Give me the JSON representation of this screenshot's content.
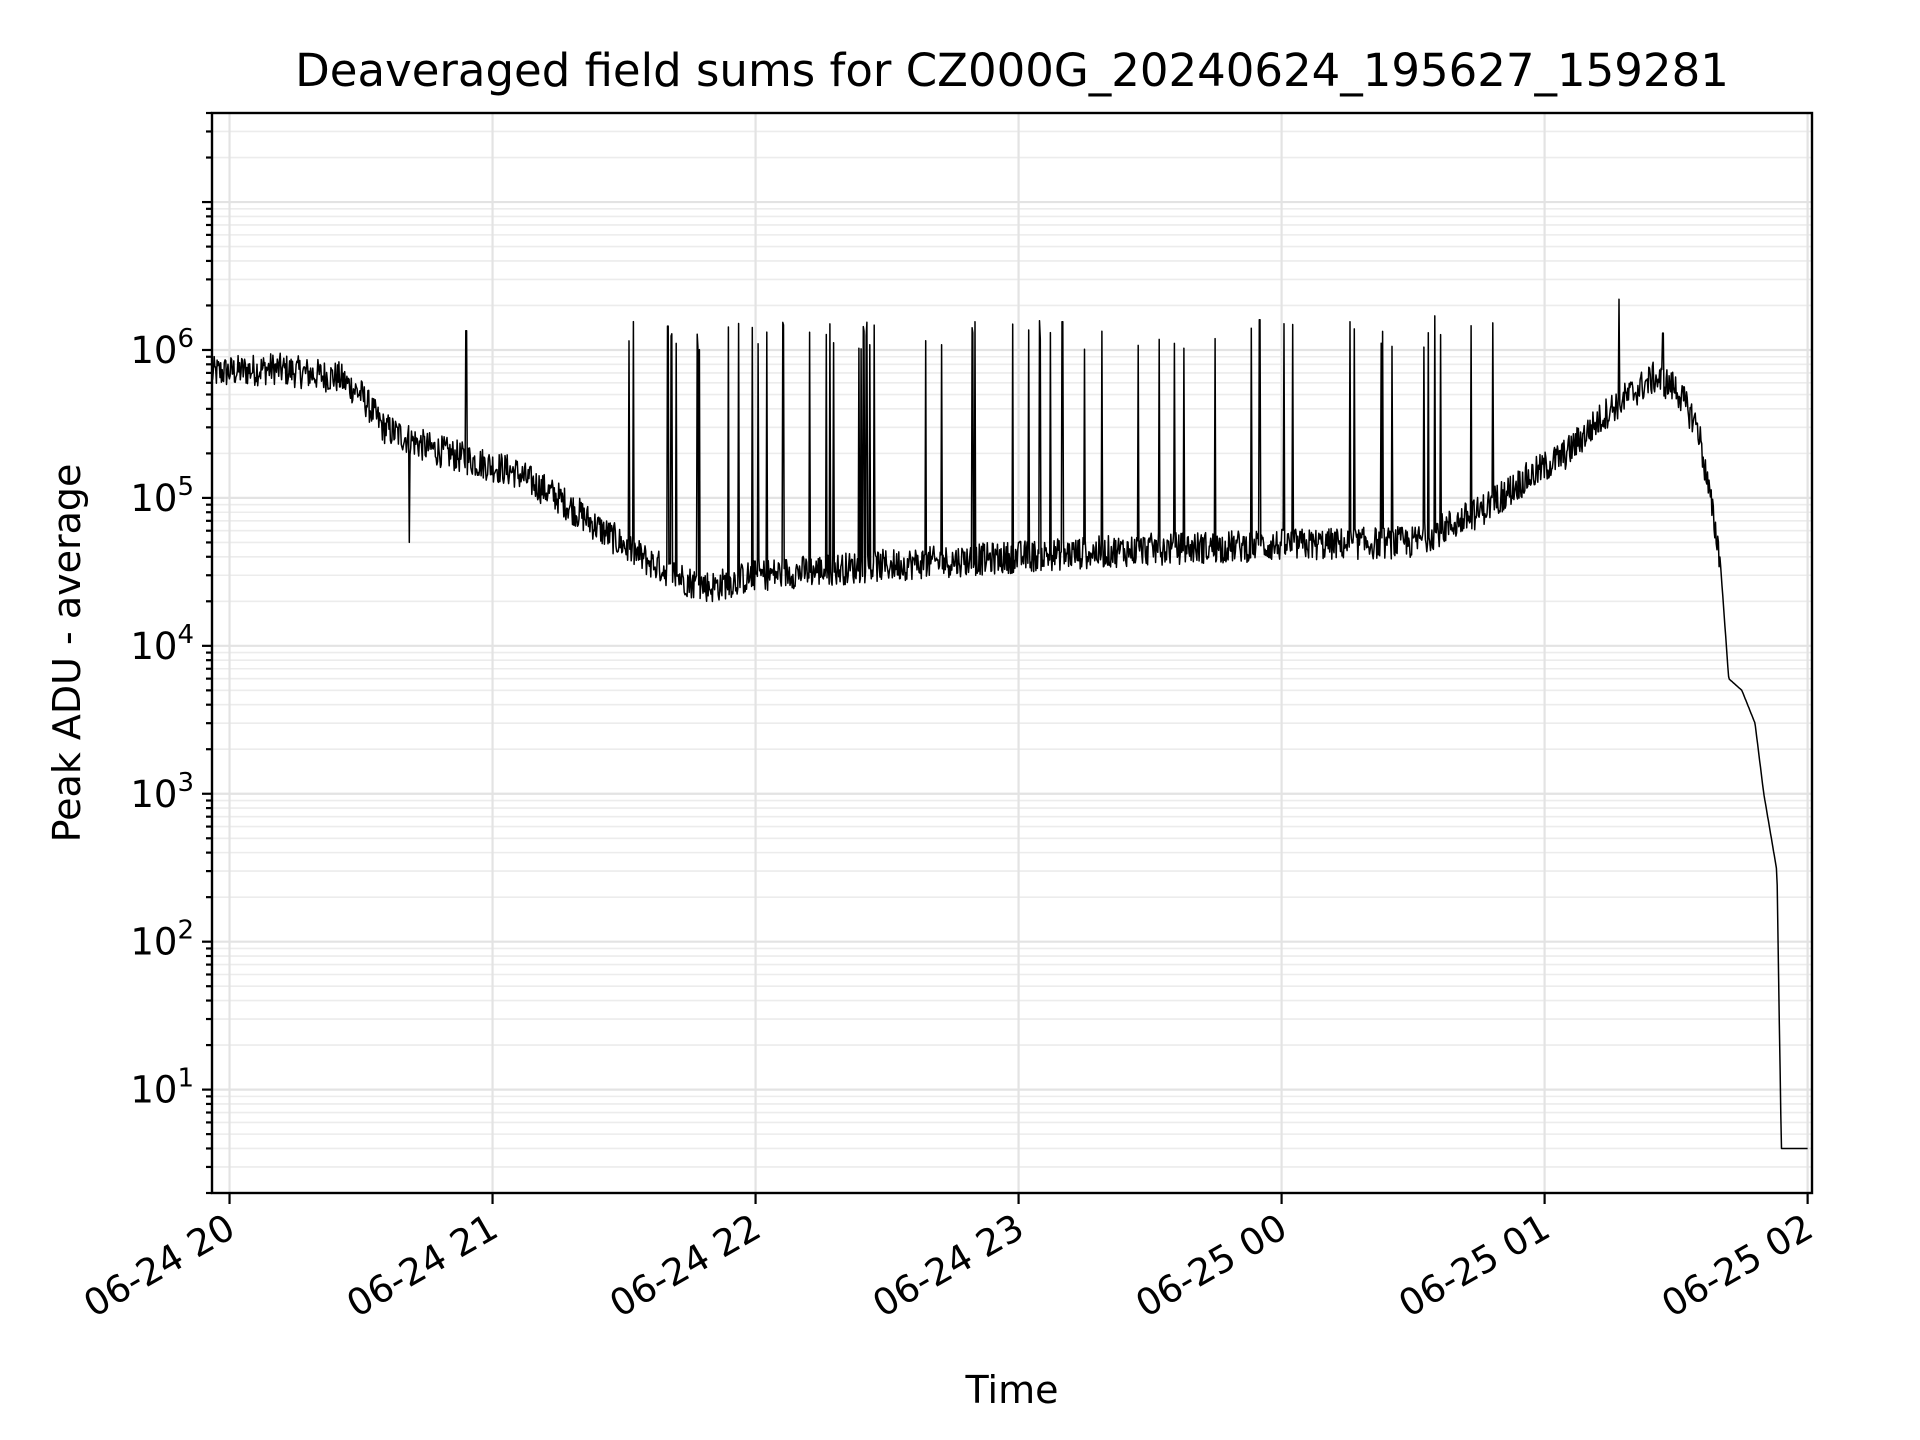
{
  "chart_data": {
    "type": "line",
    "title": "Deaveraged field sums for CZ000G_20240624_195627_159281",
    "xlabel": "Time",
    "ylabel": "Peak ADU - average",
    "yscale": "log",
    "ylim": [
      2,
      40000000
    ],
    "xlim": [
      "06-24 19:56",
      "06-25 02:01"
    ],
    "grid": true,
    "legend": "none",
    "line_color": "#000000",
    "xticks": [
      "06-24 20",
      "06-24 21",
      "06-24 22",
      "06-24 23",
      "06-25 00",
      "06-25 01",
      "06-25 02"
    ],
    "yticks": [
      {
        "base": "10",
        "exp": "1",
        "value": 10
      },
      {
        "base": "10",
        "exp": "2",
        "value": 100
      },
      {
        "base": "10",
        "exp": "3",
        "value": 1000
      },
      {
        "base": "10",
        "exp": "4",
        "value": 10000
      },
      {
        "base": "10",
        "exp": "5",
        "value": 100000
      },
      {
        "base": "10",
        "exp": "6",
        "value": 1000000
      }
    ],
    "series": [
      {
        "baseline": [
          [
            "06-24 19:56",
            700000
          ],
          [
            "06-24 20:10",
            750000
          ],
          [
            "06-24 20:20",
            680000
          ],
          [
            "06-24 20:25",
            650000
          ],
          [
            "06-24 20:30",
            500000
          ],
          [
            "06-24 20:35",
            300000
          ],
          [
            "06-24 20:45",
            220000
          ],
          [
            "06-24 20:55",
            180000
          ],
          [
            "06-24 21:05",
            150000
          ],
          [
            "06-24 21:15",
            100000
          ],
          [
            "06-24 21:25",
            60000
          ],
          [
            "06-24 21:35",
            38000
          ],
          [
            "06-24 21:45",
            27000
          ],
          [
            "06-24 21:50",
            25000
          ],
          [
            "06-24 22:00",
            30000
          ],
          [
            "06-24 22:30",
            35000
          ],
          [
            "06-24 23:00",
            40000
          ],
          [
            "06-24 23:30",
            45000
          ],
          [
            "06-25 00:00",
            48000
          ],
          [
            "06-25 00:30",
            50000
          ],
          [
            "06-25 00:45",
            80000
          ],
          [
            "06-25 00:55",
            130000
          ],
          [
            "06-25 01:05",
            200000
          ],
          [
            "06-25 01:15",
            400000
          ],
          [
            "06-25 01:25",
            650000
          ],
          [
            "06-25 01:30",
            550000
          ],
          [
            "06-25 01:35",
            300000
          ],
          [
            "06-25 01:40",
            40000
          ],
          [
            "06-25 01:42",
            6000
          ],
          [
            "06-25 01:45",
            5000
          ],
          [
            "06-25 01:48",
            3000
          ],
          [
            "06-25 01:50",
            1000
          ],
          [
            "06-25 01:53",
            300
          ],
          [
            "06-25 01:54",
            4
          ],
          [
            "06-25 02:00",
            4
          ]
        ],
        "spikes": [
          {
            "x": "06-24 20:41",
            "y": 50000
          },
          {
            "x": "06-24 20:54",
            "y": 1350000
          },
          {
            "x": "06-24 21:40",
            "y": 1450000
          },
          {
            "x": "06-24 22:17",
            "y": 1500000
          },
          {
            "x": "06-24 22:50",
            "y": 1550000
          },
          {
            "x": "06-24 23:10",
            "y": 1550000
          },
          {
            "x": "06-24 23:55",
            "y": 1600000
          },
          {
            "x": "06-25 00:35",
            "y": 1700000
          },
          {
            "x": "06-25 01:17",
            "y": 2200000
          },
          {
            "x": "06-25 01:27",
            "y": 1300000
          }
        ]
      }
    ]
  }
}
